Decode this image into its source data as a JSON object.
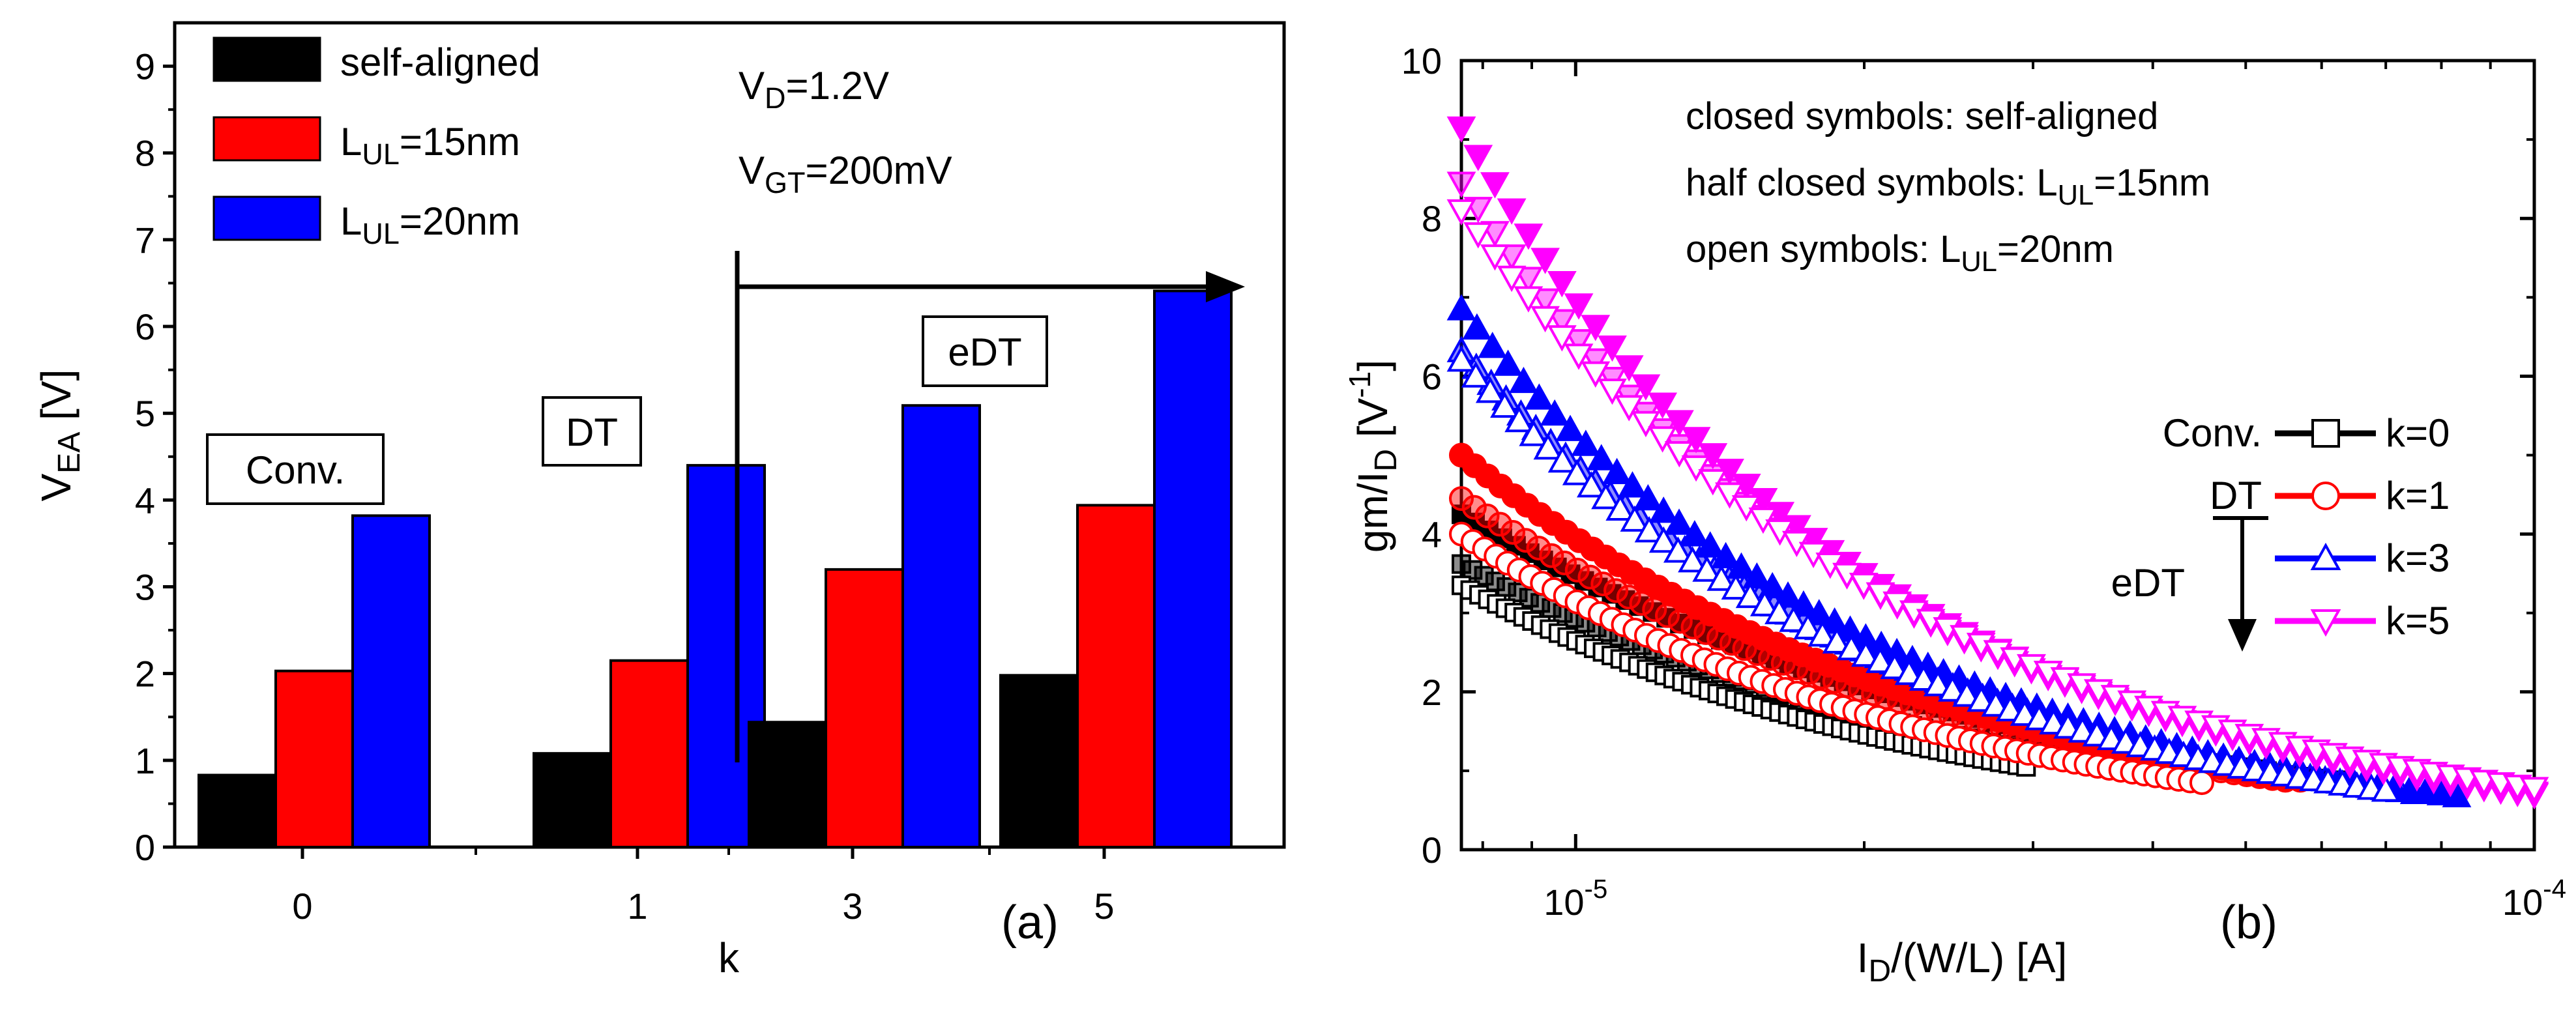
{
  "chart_data": [
    {
      "type": "bar",
      "panel_label": "(a)",
      "xlabel": "k",
      "ylabel": {
        "main": "V",
        "sub": "EA",
        "unit": " [V]"
      },
      "ylim": [
        0,
        9.5
      ],
      "yticks": [
        "0",
        "1",
        "2",
        "3",
        "4",
        "5",
        "6",
        "7",
        "8",
        "9"
      ],
      "categories": [
        "0",
        "1",
        "3",
        "5"
      ],
      "series": [
        {
          "name": "self-aligned",
          "legend_main": "self-aligned",
          "legend_sub": "",
          "legend_tail": "",
          "color": "#000000",
          "values": [
            0.83,
            1.08,
            1.44,
            1.98
          ]
        },
        {
          "name": "L_UL=15nm",
          "legend_main": "L",
          "legend_sub": "UL",
          "legend_tail": "=15nm",
          "color": "#ff0000",
          "values": [
            2.03,
            2.15,
            3.2,
            3.94
          ]
        },
        {
          "name": "L_UL=20nm",
          "legend_main": "L",
          "legend_sub": "UL",
          "legend_tail": "=20nm",
          "color": "#0000ff",
          "values": [
            3.82,
            4.4,
            5.09,
            6.41
          ]
        }
      ],
      "conditions": [
        {
          "main": "V",
          "sub": "D",
          "tail": "=1.2V"
        },
        {
          "main": "V",
          "sub": "GT",
          "tail": "=200mV"
        }
      ],
      "group_labels": {
        "conv": "Conv.",
        "dt": "DT",
        "edt": "eDT"
      }
    },
    {
      "type": "scatter",
      "panel_label": "(b)",
      "x_scale": "log",
      "xlim": [
        7.6e-06,
        0.0001
      ],
      "ylim": [
        0,
        10
      ],
      "xlabel": {
        "p1": "I",
        "s1": "D",
        "tail": "/(W/L) [A]"
      },
      "ylabel": {
        "p1": "gm/I",
        "s1": "D",
        "p2": " [V",
        "sup": "-1",
        "p3": "]"
      },
      "yticks": [
        "0",
        "2",
        "4",
        "6",
        "8",
        "10"
      ],
      "xticks": [
        {
          "base": "10",
          "exp": "-5"
        },
        {
          "base": "10",
          "exp": "-4"
        }
      ],
      "notes": [
        {
          "main": "closed symbols: self-aligned",
          "sub": "",
          "tail": ""
        },
        {
          "main": "half closed symbols: L",
          "sub": "UL",
          "tail": "=15nm"
        },
        {
          "main": "open symbols: L",
          "sub": "UL",
          "tail": "=20nm"
        }
      ],
      "legend": [
        {
          "left": "Conv.",
          "label": "k=0",
          "color": "#000000",
          "marker": "square"
        },
        {
          "left": "DT",
          "label": "k=1",
          "color": "#ff0000",
          "marker": "circle"
        },
        {
          "left": "",
          "label": "k=3",
          "color": "#0000ff",
          "marker": "triangle-up"
        },
        {
          "left": "",
          "label": "k=5",
          "color": "#ff00ff",
          "marker": "triangle-down"
        }
      ],
      "edt_label": "eDT",
      "series": [
        {
          "k": 0,
          "variant": "self-aligned",
          "fill": "closed",
          "color": "#000000",
          "marker": "square",
          "x_start": 7.6e-06,
          "x_end": 6.2e-05,
          "y_start": 4.25,
          "y_end": 0.88
        },
        {
          "k": 0,
          "variant": "L_UL=15nm",
          "fill": "half",
          "color": "#000000",
          "marker": "square",
          "x_start": 7.6e-06,
          "x_end": 4.3e-05,
          "y_start": 3.62,
          "y_end": 0.95
        },
        {
          "k": 0,
          "variant": "L_UL=20nm",
          "fill": "open",
          "color": "#000000",
          "marker": "square",
          "x_start": 7.6e-06,
          "x_end": 2.95e-05,
          "y_start": 3.35,
          "y_end": 1.05
        },
        {
          "k": 1,
          "variant": "self-aligned",
          "fill": "closed",
          "color": "#ff0000",
          "marker": "circle",
          "x_start": 7.6e-06,
          "x_end": 5.7e-05,
          "y_start": 5.0,
          "y_end": 0.88
        },
        {
          "k": 1,
          "variant": "L_UL=15nm",
          "fill": "half",
          "color": "#ff0000",
          "marker": "circle",
          "x_start": 7.6e-06,
          "x_end": 5.5e-05,
          "y_start": 4.45,
          "y_end": 0.88
        },
        {
          "k": 1,
          "variant": "L_UL=20nm",
          "fill": "open",
          "color": "#ff0000",
          "marker": "circle",
          "x_start": 7.6e-06,
          "x_end": 4.5e-05,
          "y_start": 4.0,
          "y_end": 0.85
        },
        {
          "k": 3,
          "variant": "self-aligned",
          "fill": "closed",
          "color": "#0000ff",
          "marker": "triangle-up",
          "x_start": 7.6e-06,
          "x_end": 8.3e-05,
          "y_start": 6.85,
          "y_end": 0.68
        },
        {
          "k": 3,
          "variant": "L_UL=15nm",
          "fill": "half",
          "color": "#0000ff",
          "marker": "triangle-up",
          "x_start": 7.6e-06,
          "x_end": 7.5e-05,
          "y_start": 6.32,
          "y_end": 0.72
        },
        {
          "k": 3,
          "variant": "L_UL=20nm",
          "fill": "open",
          "color": "#0000ff",
          "marker": "triangle-up",
          "x_start": 7.6e-06,
          "x_end": 7e-05,
          "y_start": 6.2,
          "y_end": 0.75
        },
        {
          "k": 5,
          "variant": "self-aligned",
          "fill": "closed",
          "color": "#ff00ff",
          "marker": "triangle-down",
          "x_start": 7.6e-06,
          "x_end": 0.0001,
          "y_start": 9.15,
          "y_end": 0.7
        },
        {
          "k": 5,
          "variant": "L_UL=15nm",
          "fill": "half",
          "color": "#ff00ff",
          "marker": "triangle-down",
          "x_start": 7.6e-06,
          "x_end": 0.0001,
          "y_start": 8.45,
          "y_end": 0.72
        },
        {
          "k": 5,
          "variant": "L_UL=20nm",
          "fill": "open",
          "color": "#ff00ff",
          "marker": "triangle-down",
          "x_start": 7.6e-06,
          "x_end": 0.0001,
          "y_start": 8.1,
          "y_end": 0.78
        }
      ]
    }
  ]
}
